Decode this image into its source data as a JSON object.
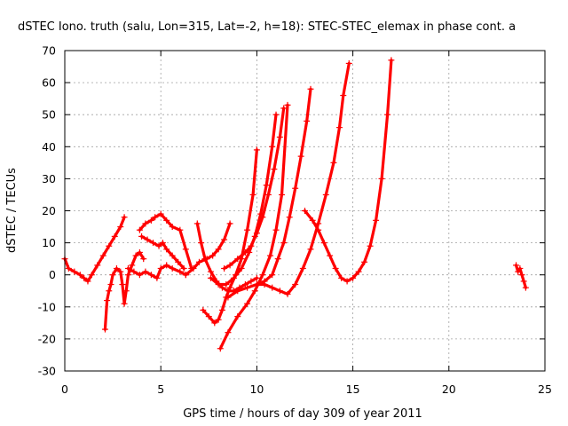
{
  "chart_data": {
    "type": "scatter",
    "title": "dSTEC Iono. truth (salu, Lon=315, Lat=-2, h=18): STEC-STEC_elemax in phase cont. a",
    "xlabel": "GPS time / hours of day 309 of year 2011",
    "ylabel": "dSTEC  / TECUs",
    "xlim": [
      0,
      25
    ],
    "ylim": [
      -30,
      70
    ],
    "xticks": [
      0,
      5,
      10,
      15,
      20,
      25
    ],
    "yticks": [
      -30,
      -20,
      -10,
      0,
      10,
      20,
      30,
      40,
      50,
      60,
      70
    ],
    "grid": true,
    "color": "#ff0000",
    "marker": "+",
    "series": [
      {
        "x": [
          0.0,
          0.2,
          0.5,
          0.8,
          1.0,
          1.2,
          1.4,
          1.7,
          2.0,
          2.3,
          2.6,
          2.9,
          3.1
        ],
        "y": [
          5,
          2,
          1,
          0,
          -1,
          -2,
          0,
          3,
          6,
          9,
          12,
          15,
          18
        ]
      },
      {
        "x": [
          2.1,
          2.2,
          2.3,
          2.4,
          2.5,
          2.7,
          2.9,
          3.0,
          3.1,
          3.2,
          3.3,
          3.5,
          3.7,
          3.9,
          4.1
        ],
        "y": [
          -17,
          -8,
          -5,
          -3,
          0,
          2,
          1,
          -3,
          -9,
          -5,
          0,
          3,
          6,
          7,
          5
        ]
      },
      {
        "x": [
          3.9,
          4.2,
          4.5,
          4.7,
          5.0,
          5.3,
          5.6,
          6.0,
          6.3,
          6.6
        ],
        "y": [
          14,
          16,
          17,
          18,
          19,
          17,
          15,
          14,
          8,
          2
        ]
      },
      {
        "x": [
          3.3,
          3.6,
          3.9,
          4.2,
          4.5,
          4.8,
          5.0,
          5.3,
          5.6,
          6.0,
          6.3
        ],
        "y": [
          2,
          1,
          0,
          1,
          0,
          -1,
          2,
          3,
          2,
          1,
          0
        ]
      },
      {
        "x": [
          4.0,
          4.3,
          4.6,
          4.9,
          5.1,
          5.3,
          5.6,
          5.9,
          6.2
        ],
        "y": [
          12,
          11,
          10,
          9,
          10,
          8,
          6,
          4,
          2
        ]
      },
      {
        "x": [
          6.3,
          6.7,
          7.0,
          7.4,
          7.7,
          8.0,
          8.3,
          8.6
        ],
        "y": [
          0,
          2,
          4,
          5,
          6,
          8,
          11,
          16
        ]
      },
      {
        "x": [
          6.9,
          7.1,
          7.3,
          7.6,
          7.9,
          8.2,
          8.5,
          8.8,
          9.1,
          9.4,
          9.7,
          10.0
        ],
        "y": [
          16,
          10,
          5,
          1,
          -2,
          -4,
          -5,
          -5,
          -4,
          -3,
          -2,
          -1
        ]
      },
      {
        "x": [
          7.2,
          7.5,
          7.8,
          8.0,
          8.2,
          8.4,
          8.6,
          8.9,
          9.2,
          9.5,
          9.8,
          10.0
        ],
        "y": [
          -11,
          -13,
          -15,
          -14,
          -11,
          -7,
          -4,
          0,
          5,
          14,
          25,
          39
        ]
      },
      {
        "x": [
          7.6,
          8.0,
          8.4,
          8.8,
          9.2,
          9.6,
          9.9,
          10.2,
          10.5,
          10.8,
          11.0
        ],
        "y": [
          -1,
          -3,
          -3,
          -1,
          2,
          7,
          12,
          19,
          28,
          40,
          50
        ]
      },
      {
        "x": [
          8.3,
          8.6,
          9.0,
          9.4,
          9.7,
          10.0,
          10.3,
          10.6,
          10.9,
          11.2,
          11.4
        ],
        "y": [
          2,
          3,
          5,
          7,
          9,
          13,
          18,
          25,
          33,
          43,
          52
        ]
      },
      {
        "x": [
          8.1,
          8.5,
          9.0,
          9.5,
          9.9,
          10.3,
          10.7,
          11.0,
          11.3,
          11.6
        ],
        "y": [
          -23,
          -18,
          -13,
          -9,
          -5,
          0,
          6,
          14,
          25,
          53
        ]
      },
      {
        "x": [
          8.5,
          9.0,
          9.5,
          10.0,
          10.4,
          10.8,
          11.1,
          11.4,
          11.7,
          12.0,
          12.3,
          12.6,
          12.8
        ],
        "y": [
          -7,
          -5,
          -4,
          -3,
          -2,
          0,
          5,
          10,
          18,
          27,
          37,
          48,
          58
        ]
      },
      {
        "x": [
          10.0,
          10.4,
          10.8,
          11.2,
          11.6,
          12.0,
          12.4,
          12.8,
          13.2,
          13.6,
          14.0,
          14.3,
          14.5,
          14.8
        ],
        "y": [
          -3,
          -3,
          -4,
          -5,
          -6,
          -3,
          2,
          8,
          16,
          25,
          35,
          46,
          56,
          66
        ]
      },
      {
        "x": [
          12.5,
          12.9,
          13.2,
          13.5,
          13.8,
          14.1,
          14.4,
          14.7,
          15.0,
          15.3,
          15.6,
          15.9,
          16.2,
          16.5,
          16.8,
          17.0
        ],
        "y": [
          20,
          17,
          14,
          10,
          6,
          2,
          -1,
          -2,
          -1,
          1,
          4,
          9,
          17,
          30,
          50,
          67
        ]
      },
      {
        "x": [
          23.5,
          23.6,
          23.7,
          23.8,
          23.9,
          24.0
        ],
        "y": [
          3,
          1,
          2,
          0,
          -2,
          -4
        ]
      }
    ]
  }
}
